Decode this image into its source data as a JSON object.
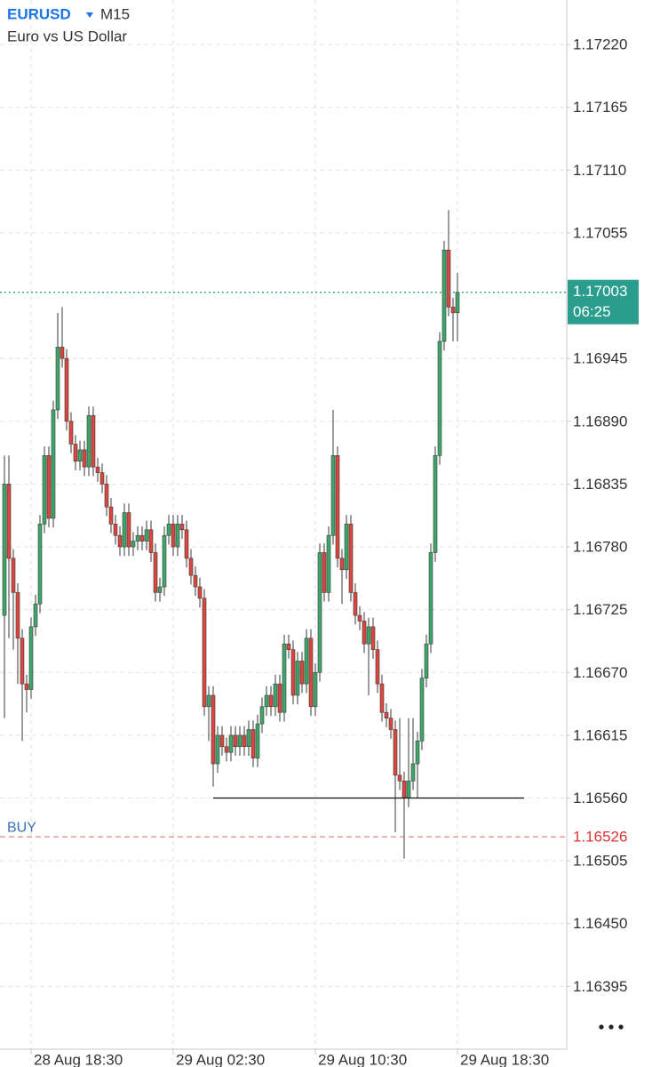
{
  "chart_data": {
    "type": "candlestick",
    "symbol": "EURUSD",
    "timeframe": "M15",
    "description": "Euro vs US Dollar",
    "up_color": "#3fa66a",
    "down_color": "#d9473f",
    "open": [
      1.1672,
      1.16835,
      1.1677,
      1.1674,
      1.167,
      1.1666,
      1.16655,
      1.1671,
      1.1673,
      1.168,
      1.1686,
      1.16805,
      1.169,
      1.16955,
      1.16945,
      1.1689,
      1.1687,
      1.16855,
      1.16865,
      1.1685,
      1.16895,
      1.1685,
      1.16845,
      1.16835,
      1.16815,
      1.168,
      1.1679,
      1.1678,
      1.1681,
      1.1678,
      1.16785,
      1.1679,
      1.16785,
      1.16795,
      1.16775,
      1.1674,
      1.16745,
      1.1679,
      1.168,
      1.1678,
      1.168,
      1.16795,
      1.1677,
      1.16755,
      1.16745,
      1.16735,
      1.1664,
      1.1665,
      1.1659,
      1.16615,
      1.16605,
      1.166,
      1.16615,
      1.16605,
      1.16615,
      1.16605,
      1.1662,
      1.16595,
      1.16625,
      1.1664,
      1.1665,
      1.1664,
      1.1666,
      1.16635,
      1.16695,
      1.1669,
      1.1665,
      1.1668,
      1.1666,
      1.167,
      1.1664,
      1.1667,
      1.16775,
      1.1674,
      1.1679,
      1.1686,
      1.1677,
      1.1676,
      1.168,
      1.1674,
      1.1672,
      1.16715,
      1.16695,
      1.1671,
      1.1669,
      1.1666,
      1.16635,
      1.1663,
      1.1662,
      1.1658,
      1.16575,
      1.1656,
      1.16575,
      1.1659,
      1.1661,
      1.16665,
      1.16695,
      1.16775,
      1.1686,
      1.1696,
      1.1704,
      1.1699,
      1.16985
    ],
    "high": [
      1.1686,
      1.1686,
      1.16778,
      1.16748,
      1.16708,
      1.16668,
      1.16718,
      1.16738,
      1.16808,
      1.16868,
      1.16868,
      1.16908,
      1.16985,
      1.1699,
      1.16953,
      1.16898,
      1.16878,
      1.16873,
      1.16873,
      1.16903,
      1.16903,
      1.16858,
      1.16853,
      1.16843,
      1.16823,
      1.16808,
      1.16798,
      1.16818,
      1.16818,
      1.16793,
      1.16798,
      1.16798,
      1.16803,
      1.16803,
      1.16783,
      1.16753,
      1.16798,
      1.16808,
      1.16808,
      1.16808,
      1.16808,
      1.16803,
      1.16778,
      1.16763,
      1.16753,
      1.16743,
      1.16658,
      1.16658,
      1.16623,
      1.16623,
      1.16613,
      1.16623,
      1.16623,
      1.16623,
      1.16623,
      1.16628,
      1.16628,
      1.16633,
      1.16648,
      1.16658,
      1.16658,
      1.16668,
      1.16668,
      1.16703,
      1.16703,
      1.16698,
      1.16688,
      1.16688,
      1.16708,
      1.16708,
      1.16678,
      1.16783,
      1.16783,
      1.16798,
      1.169,
      1.16868,
      1.16778,
      1.16808,
      1.16808,
      1.16748,
      1.16728,
      1.16723,
      1.16718,
      1.16718,
      1.16698,
      1.16668,
      1.16643,
      1.16638,
      1.16628,
      1.1663,
      1.16583,
      1.1663,
      1.1663,
      1.16618,
      1.16673,
      1.16703,
      1.16783,
      1.16868,
      1.16968,
      1.17048,
      1.17075,
      1.16998,
      1.1702
    ],
    "low": [
      1.1663,
      1.167,
      1.1669,
      1.1666,
      1.1661,
      1.16635,
      1.16647,
      1.16702,
      1.16722,
      1.16792,
      1.16797,
      1.16797,
      1.16892,
      1.16937,
      1.16882,
      1.16862,
      1.16847,
      1.16847,
      1.16842,
      1.16842,
      1.16842,
      1.16837,
      1.16827,
      1.16807,
      1.16792,
      1.16782,
      1.16772,
      1.16772,
      1.16772,
      1.16772,
      1.16777,
      1.16777,
      1.16777,
      1.16767,
      1.16732,
      1.16732,
      1.16737,
      1.16782,
      1.16772,
      1.16772,
      1.16787,
      1.16762,
      1.16747,
      1.16737,
      1.16727,
      1.16632,
      1.1661,
      1.1657,
      1.16582,
      1.16597,
      1.16592,
      1.16592,
      1.16597,
      1.16597,
      1.16597,
      1.16597,
      1.16587,
      1.16587,
      1.16617,
      1.16632,
      1.16632,
      1.16632,
      1.16627,
      1.16627,
      1.16682,
      1.16642,
      1.16642,
      1.16652,
      1.16652,
      1.16632,
      1.16632,
      1.16662,
      1.16732,
      1.16732,
      1.16782,
      1.16762,
      1.1673,
      1.16752,
      1.16732,
      1.16712,
      1.16707,
      1.16687,
      1.1665,
      1.16682,
      1.16652,
      1.16627,
      1.16622,
      1.16612,
      1.1653,
      1.16567,
      1.16507,
      1.16552,
      1.16567,
      1.1656,
      1.16602,
      1.16657,
      1.16687,
      1.16767,
      1.16852,
      1.16952,
      1.16982,
      1.1696,
      1.1696
    ],
    "close": [
      1.16835,
      1.1677,
      1.1674,
      1.167,
      1.1666,
      1.16655,
      1.1671,
      1.1673,
      1.168,
      1.1686,
      1.16805,
      1.169,
      1.16955,
      1.16945,
      1.1689,
      1.1687,
      1.16855,
      1.16865,
      1.1685,
      1.16895,
      1.1685,
      1.16845,
      1.16835,
      1.16815,
      1.168,
      1.1679,
      1.1678,
      1.1681,
      1.1678,
      1.16785,
      1.1679,
      1.16785,
      1.16795,
      1.16775,
      1.1674,
      1.16745,
      1.1679,
      1.168,
      1.1678,
      1.168,
      1.16795,
      1.1677,
      1.16755,
      1.16745,
      1.16735,
      1.1664,
      1.1665,
      1.1659,
      1.16615,
      1.16605,
      1.166,
      1.16615,
      1.16605,
      1.16615,
      1.16605,
      1.1662,
      1.16595,
      1.16625,
      1.1664,
      1.1665,
      1.1664,
      1.1666,
      1.16635,
      1.16695,
      1.1669,
      1.1665,
      1.1668,
      1.1666,
      1.167,
      1.1664,
      1.1667,
      1.16775,
      1.1674,
      1.1679,
      1.1686,
      1.1677,
      1.1676,
      1.168,
      1.1674,
      1.1672,
      1.16715,
      1.16695,
      1.1671,
      1.1669,
      1.1666,
      1.16635,
      1.1663,
      1.1662,
      1.1658,
      1.16575,
      1.1656,
      1.16575,
      1.1659,
      1.1661,
      1.16665,
      1.16695,
      1.16775,
      1.1686,
      1.1696,
      1.1704,
      1.1699,
      1.16985,
      1.17003
    ],
    "ylim": [
      1.1634,
      1.17259
    ],
    "yticks": [
      {
        "value": 1.1722,
        "label": "1.17220"
      },
      1.17165,
      {
        "value": 1.1711,
        "label": "1.17110"
      },
      1.17055,
      1.16945,
      {
        "value": 1.1689,
        "label": "1.16890"
      },
      1.16835,
      {
        "value": 1.1678,
        "label": "1.16780"
      },
      1.16725,
      {
        "value": 1.1667,
        "label": "1.16670"
      },
      1.16615,
      {
        "value": 1.1656,
        "label": "1.16560"
      },
      1.16505,
      {
        "value": 1.1645,
        "label": "1.16450"
      },
      1.16395
    ],
    "xlim": [
      -1,
      126.6
    ],
    "xticks": [
      {
        "value": 6,
        "label": "28 Aug 18:30"
      },
      {
        "value": 38,
        "label": "29 Aug 02:30"
      },
      {
        "value": 70,
        "label": "29 Aug 10:30"
      },
      {
        "value": 102,
        "label": "29 Aug 18:30"
      }
    ],
    "grid": true,
    "current_price": 1.17003,
    "countdown": "06:25",
    "order": {
      "label": "BUY",
      "price": 1.16526
    },
    "level_line": {
      "value": 1.1656,
      "from": 47,
      "to": 117
    }
  }
}
